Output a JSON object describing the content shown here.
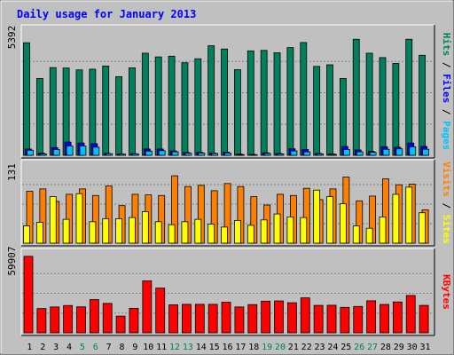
{
  "chart_data": {
    "type": "bar",
    "title": "Daily usage for January 2013",
    "days": [
      "1",
      "2",
      "3",
      "4",
      "5",
      "6",
      "7",
      "8",
      "9",
      "10",
      "11",
      "12",
      "13",
      "14",
      "15",
      "16",
      "17",
      "18",
      "19",
      "20",
      "21",
      "22",
      "23",
      "24",
      "25",
      "26",
      "27",
      "28",
      "29",
      "30",
      "31"
    ],
    "weekend_days": [
      "5",
      "6",
      "12",
      "13",
      "19",
      "20",
      "26",
      "27"
    ],
    "panels": [
      {
        "id": "hits",
        "max_label": "5392",
        "ylim": [
          0,
          5392
        ],
        "axis_labels": [
          "Pages",
          "Files",
          "Hits"
        ],
        "series": [
          {
            "name": "Hits",
            "color": "#00805C",
            "values": [
              4850,
              3310,
              3780,
              3760,
              3680,
              3710,
              3850,
              3390,
              3770,
              4400,
              4240,
              4270,
              3990,
              4160,
              4720,
              4580,
              3690,
              4500,
              4520,
              4420,
              4640,
              4860,
              3830,
              3900,
              3310,
              5000,
              4400,
              4210,
              3960,
              5000,
              4310
            ]
          },
          {
            "name": "Files",
            "color": "#0000FF",
            "values": [
              270,
              90,
              330,
              570,
              530,
              500,
              80,
              60,
              70,
              270,
              270,
              190,
              120,
              130,
              100,
              140,
              50,
              40,
              110,
              80,
              280,
              250,
              80,
              60,
              380,
              230,
              170,
              370,
              350,
              530,
              380
            ]
          },
          {
            "name": "Pages",
            "color": "#00C0FF",
            "values": [
              220,
              60,
              250,
              400,
              400,
              350,
              70,
              50,
              60,
              180,
              200,
              150,
              90,
              100,
              80,
              100,
              30,
              20,
              80,
              60,
              190,
              150,
              60,
              40,
              250,
              150,
              130,
              260,
              280,
              370,
              260
            ]
          }
        ]
      },
      {
        "id": "visits",
        "max_label": "131",
        "ylim": [
          0,
          131
        ],
        "axis_labels": [
          "Sites",
          "Visits"
        ],
        "series": [
          {
            "name": "Visits",
            "color": "#FF8000",
            "values": [
              87,
              91,
              70,
              82,
              91,
              80,
              96,
              63,
              82,
              81,
              80,
              113,
              95,
              97,
              88,
              100,
              95,
              78,
              64,
              82,
              80,
              92,
              73,
              91,
              111,
              71,
              79,
              108,
              98,
              99,
              56
            ]
          },
          {
            "name": "Sites",
            "color": "#FFFF00",
            "values": [
              29,
              35,
              78,
              40,
              83,
              36,
              41,
              41,
              43,
              53,
              36,
              31,
              36,
              40,
              32,
              27,
              38,
              30,
              39,
              49,
              44,
              43,
              89,
              78,
              66,
              29,
              25,
              44,
              82,
              94,
              51
            ]
          }
        ]
      },
      {
        "id": "kbytes",
        "max_label": "59907",
        "ylim": [
          0,
          59907
        ],
        "axis_labels": [
          "KBytes"
        ],
        "series": [
          {
            "name": "KBytes",
            "color": "#FF0000",
            "values": [
              58000,
              18400,
              19600,
              20700,
              19700,
              25200,
              22300,
              12700,
              18600,
              39400,
              33900,
              21200,
              21600,
              21600,
              21600,
              23200,
              19600,
              21400,
              24000,
              24200,
              22800,
              26500,
              20800,
              20900,
              19300,
              20000,
              24300,
              21500,
              23400,
              28300,
              20800
            ]
          }
        ]
      }
    ]
  }
}
